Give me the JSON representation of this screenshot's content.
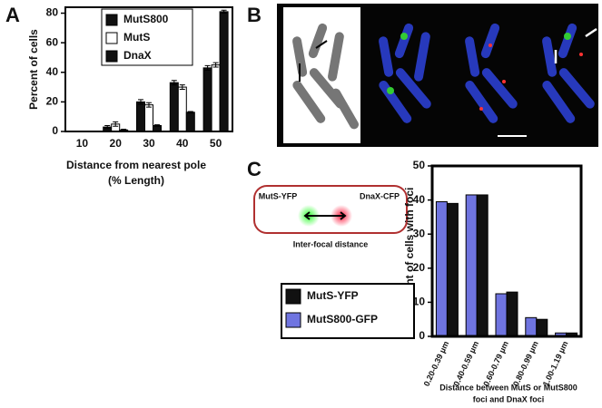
{
  "panels": {
    "a": "A",
    "b": "B",
    "c": "C"
  },
  "diagram": {
    "left": "MutS-YFP",
    "right": "DnaX-CFP",
    "caption": "Inter-focal distance"
  },
  "chart_data": [
    {
      "type": "bar",
      "categories": [
        "10",
        "20",
        "30",
        "40",
        "50"
      ],
      "series": [
        {
          "name": "MutS800",
          "color": "#111111",
          "values": [
            0,
            3,
            20,
            33,
            43
          ],
          "errors": [
            0,
            1,
            1.5,
            1.5,
            1.5
          ]
        },
        {
          "name": "MutS",
          "color": "#ffffff",
          "values": [
            0,
            5,
            18,
            30,
            45
          ],
          "errors": [
            0,
            1.5,
            1.5,
            1.5,
            1.5
          ]
        },
        {
          "name": "DnaX",
          "color": "#111111",
          "values": [
            0,
            1,
            4,
            13,
            81
          ],
          "errors": [
            0,
            0.5,
            0.5,
            0.5,
            1
          ]
        }
      ],
      "ylim": [
        0,
        84
      ],
      "yticks": [
        0,
        20,
        40,
        60,
        80
      ],
      "ylabel": "Percent of cells",
      "xlabel": [
        "Distance from nearest pole",
        "(% Length)"
      ],
      "legend": "upper left"
    },
    {
      "type": "bar",
      "categories": [
        "0.20-0.39 µm",
        "0.40-0.59 µm",
        "0.60-0.79 µm",
        "0.80-0.99 µm",
        "1.00-1.19 µm"
      ],
      "series": [
        {
          "name": "MutS-YFP",
          "color": "#111111",
          "values": [
            39,
            41.5,
            13,
            5,
            1
          ]
        },
        {
          "name": "MutS800-GFP",
          "color": "#6f74e0",
          "values": [
            39.5,
            41.5,
            12.5,
            5.5,
            1
          ]
        }
      ],
      "ylim": [
        0,
        50
      ],
      "yticks": [
        0,
        10,
        20,
        30,
        40,
        50
      ],
      "ylabel": "Percent of cells with foci",
      "xlabel": [
        "Distance between MutS or MutS800",
        "foci and DnaX foci"
      ],
      "legend": "outside left"
    }
  ]
}
